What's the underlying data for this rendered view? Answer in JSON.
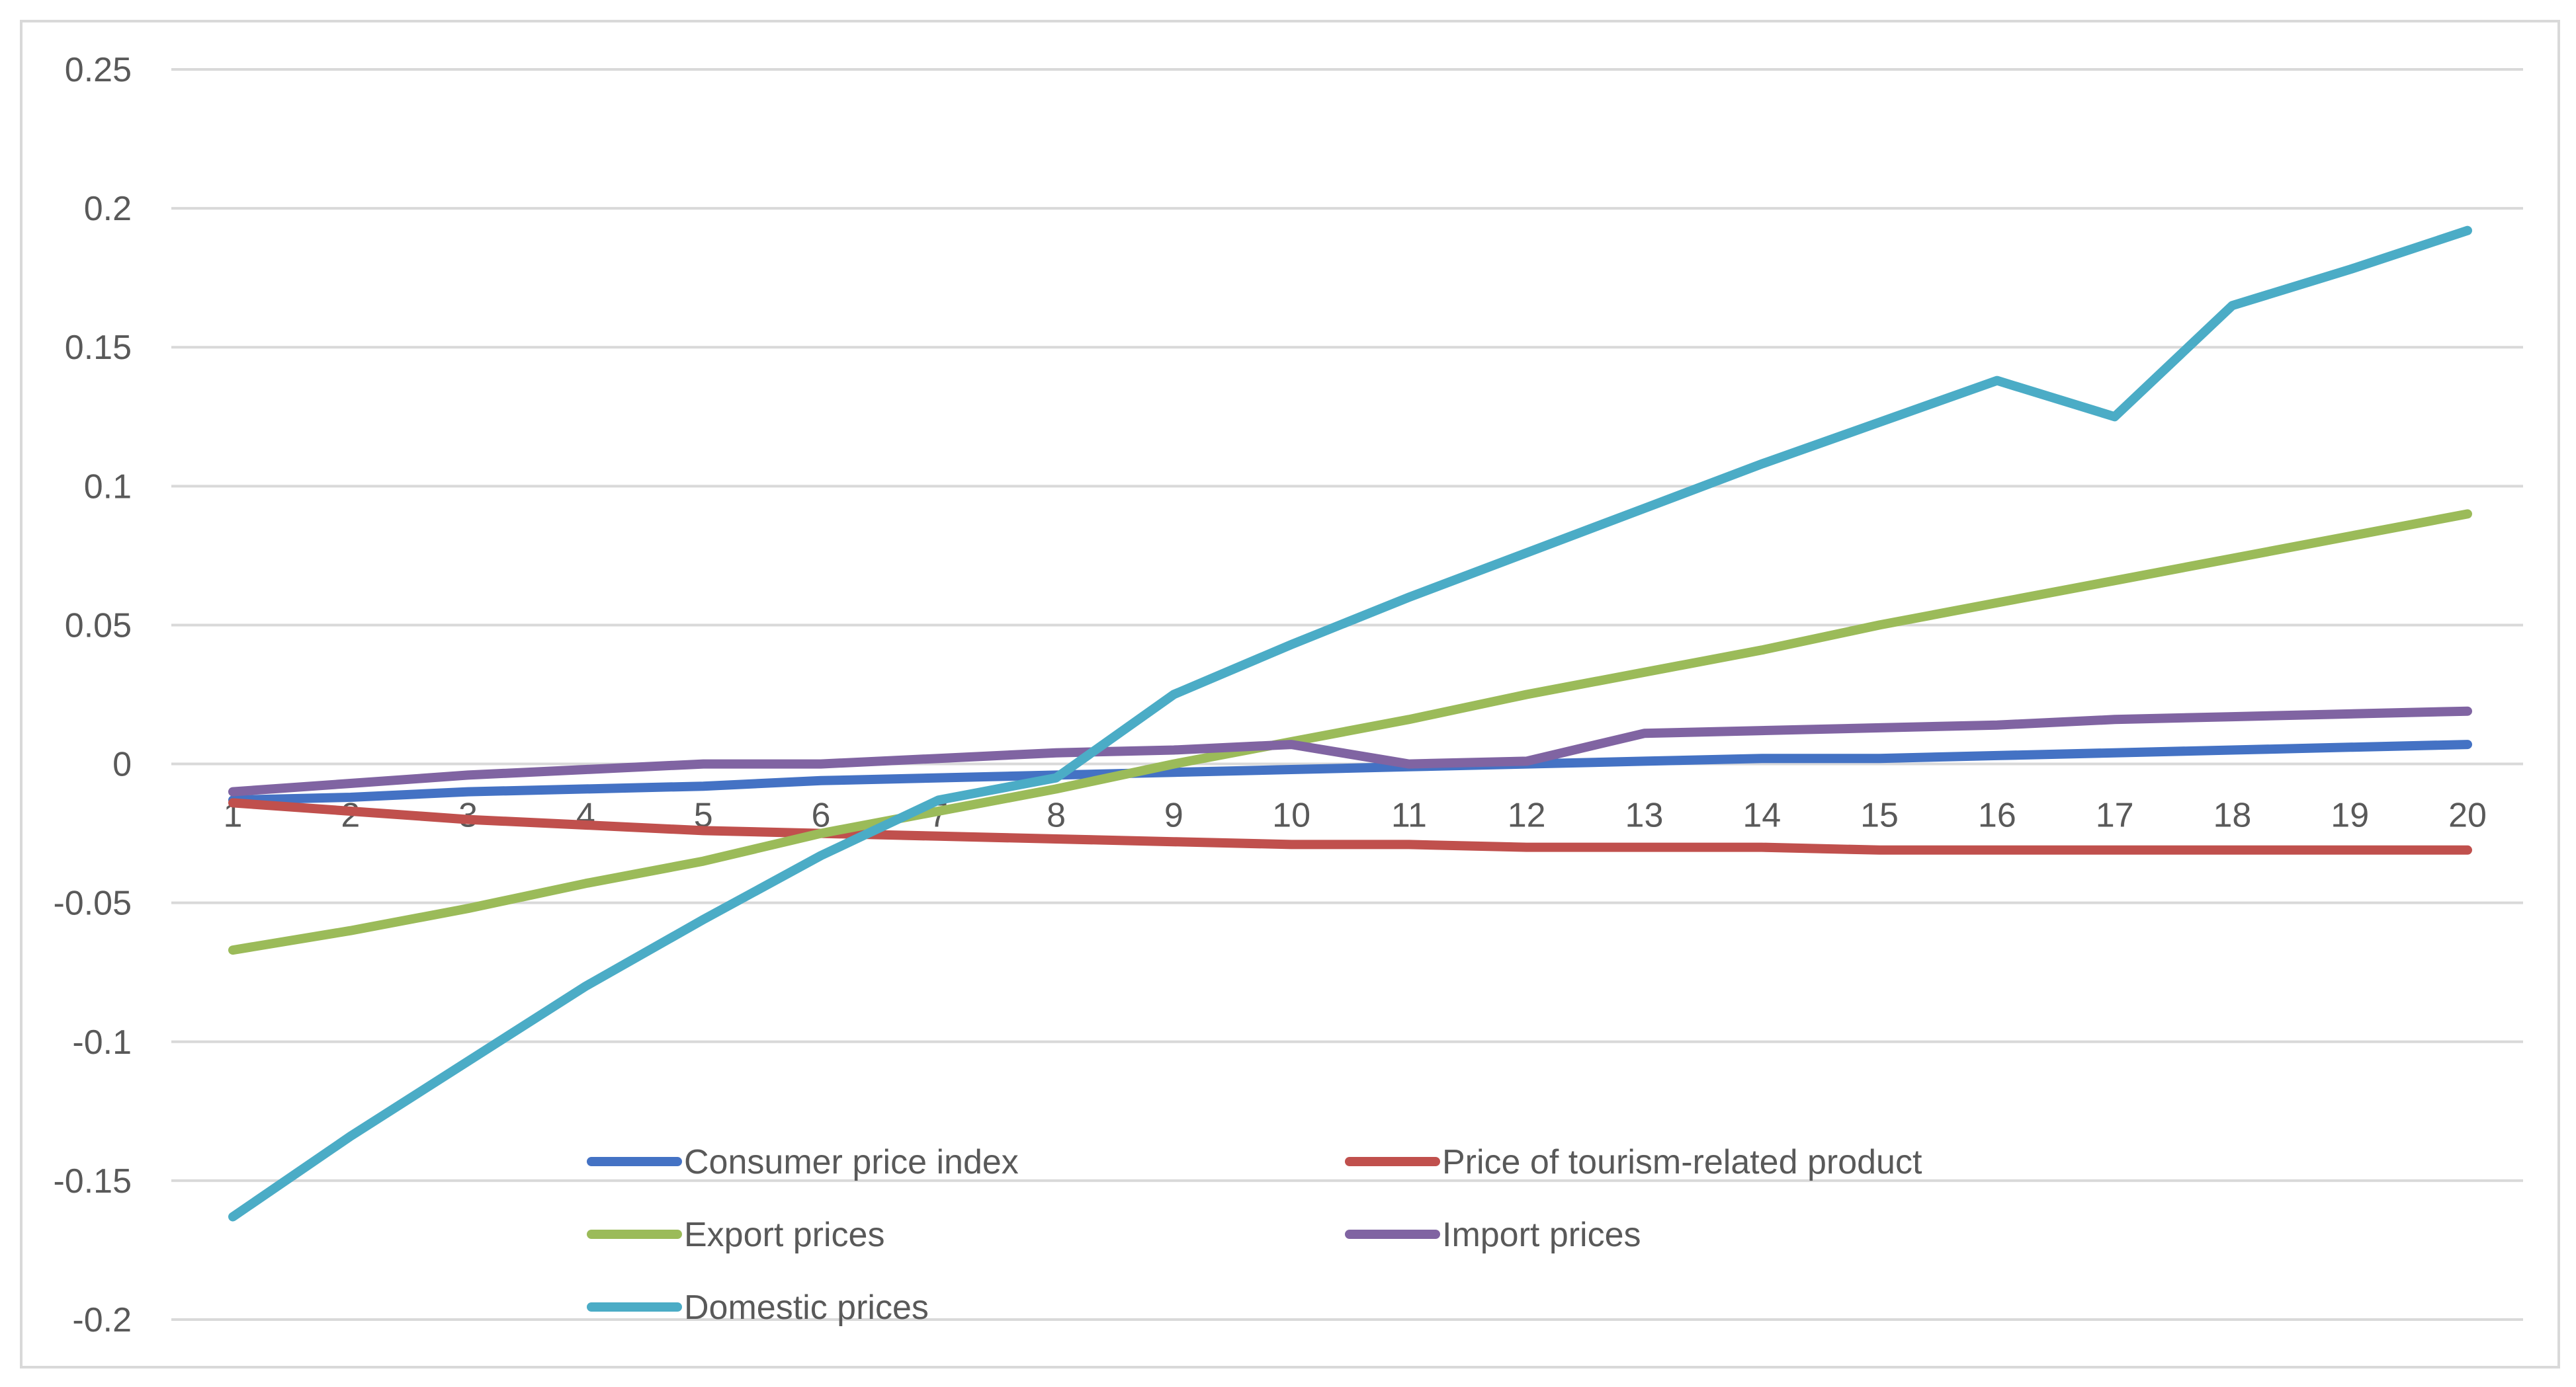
{
  "chart_data": {
    "type": "line",
    "title": "",
    "xlabel": "",
    "ylabel": "",
    "categories": [
      "1",
      "2",
      "3",
      "4",
      "5",
      "6",
      "7",
      "8",
      "9",
      "10",
      "11",
      "12",
      "13",
      "14",
      "15",
      "16",
      "17",
      "18",
      "19",
      "20"
    ],
    "ylim": [
      -0.2,
      0.25
    ],
    "yticks": [
      -0.2,
      -0.15,
      -0.1,
      -0.05,
      0,
      0.05,
      0.1,
      0.15,
      0.2,
      0.25
    ],
    "ytick_labels": [
      "-0.2",
      "-0.15",
      "-0.1",
      "-0.05",
      "0",
      "0.05",
      "0.1",
      "0.15",
      "0.2",
      "0.25"
    ],
    "grid": true,
    "legend_position": "bottom",
    "series": [
      {
        "name": "Consumer price index",
        "color": "#4472c4",
        "values": [
          -0.013,
          -0.012,
          -0.01,
          -0.009,
          -0.008,
          -0.006,
          -0.005,
          -0.004,
          -0.003,
          -0.002,
          -0.001,
          0.0,
          0.001,
          0.002,
          0.002,
          0.003,
          0.004,
          0.005,
          0.006,
          0.007
        ]
      },
      {
        "name": "Price of tourism-related product",
        "color": "#c0504d",
        "values": [
          -0.014,
          -0.017,
          -0.02,
          -0.022,
          -0.024,
          -0.025,
          -0.026,
          -0.027,
          -0.028,
          -0.029,
          -0.029,
          -0.03,
          -0.03,
          -0.03,
          -0.031,
          -0.031,
          -0.031,
          -0.031,
          -0.031,
          -0.031
        ]
      },
      {
        "name": "Export prices",
        "color": "#9bbb59",
        "values": [
          -0.067,
          -0.06,
          -0.052,
          -0.043,
          -0.035,
          -0.025,
          -0.017,
          -0.009,
          0.0,
          0.008,
          0.016,
          0.025,
          0.033,
          0.041,
          0.05,
          0.058,
          0.066,
          0.074,
          0.082,
          0.09
        ]
      },
      {
        "name": "Import prices",
        "color": "#8064a2",
        "values": [
          -0.01,
          -0.007,
          -0.004,
          -0.002,
          0.0,
          0.0,
          0.002,
          0.004,
          0.005,
          0.007,
          0.0,
          0.001,
          0.011,
          0.012,
          0.013,
          0.014,
          0.016,
          0.017,
          0.018,
          0.019
        ]
      },
      {
        "name": "Domestic prices",
        "color": "#4bacc6",
        "values": [
          -0.163,
          -0.134,
          -0.107,
          -0.08,
          -0.056,
          -0.033,
          -0.013,
          -0.005,
          0.025,
          0.043,
          0.06,
          0.076,
          0.092,
          0.108,
          0.123,
          0.138,
          0.125,
          0.165,
          0.178,
          0.192
        ]
      }
    ]
  }
}
